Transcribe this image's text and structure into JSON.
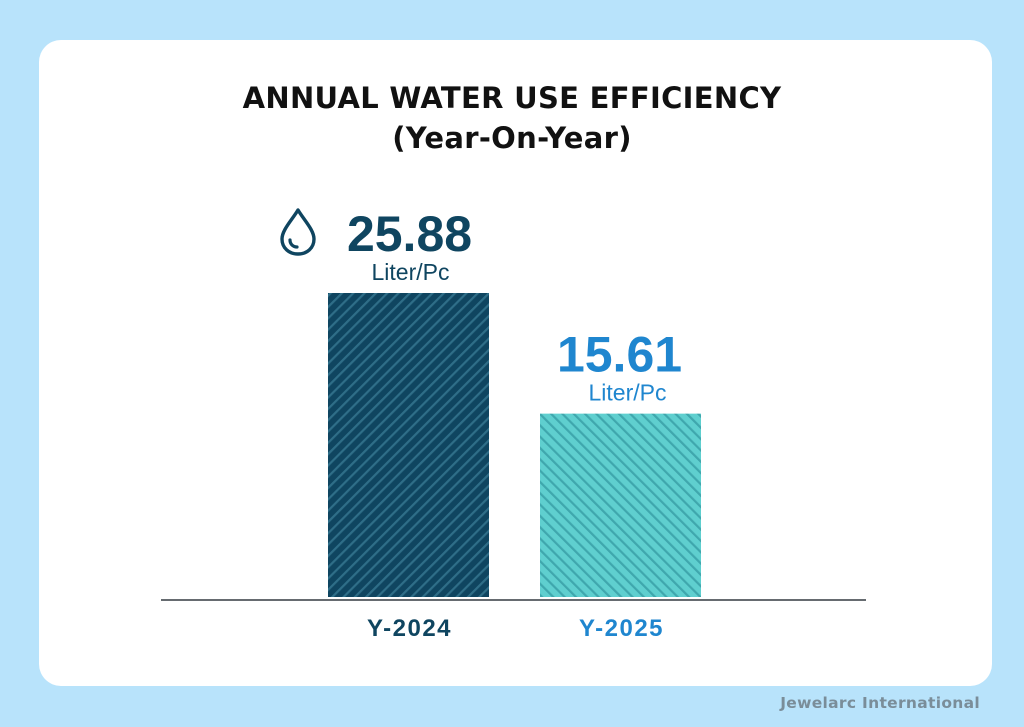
{
  "background_color": "#b8e3fb",
  "brand": "Jewelarc International",
  "chart_data": {
    "type": "bar",
    "title": "ANNUAL WATER USE EFFICIENCY",
    "subtitle": "(Year-On-Year)",
    "xlabel": "",
    "ylabel": "",
    "ylim": [
      0,
      25.88
    ],
    "grid": false,
    "legend": "none",
    "categories": [
      "Y-2024",
      "Y-2025"
    ],
    "values": [
      25.88,
      15.61
    ],
    "value_labels": [
      "25.88",
      "15.61"
    ],
    "unit": "Liter/Pc",
    "annotation_icon": "water-drop-icon",
    "series": [
      {
        "name": "Water use efficiency",
        "values": [
          25.88,
          15.61
        ],
        "colors": [
          "#0f4560",
          "#5fcfcf"
        ],
        "stripe_colors": [
          "#2f6e88",
          "#3fa7ad"
        ],
        "label_colors": [
          "#0f4560",
          "#1f86cf"
        ]
      }
    ]
  }
}
